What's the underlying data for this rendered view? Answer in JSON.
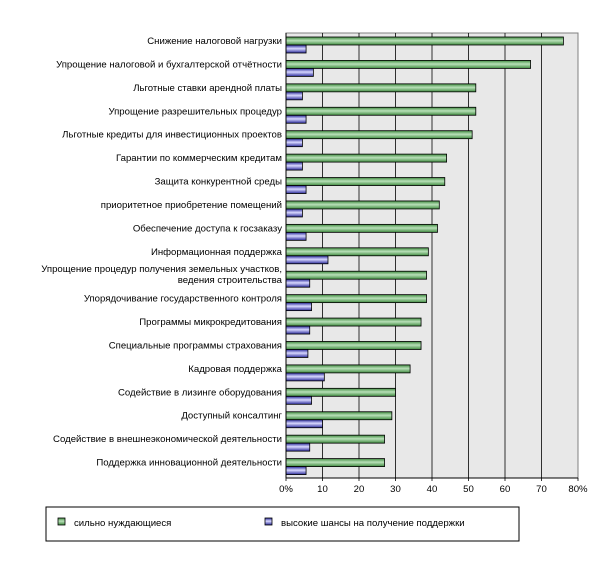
{
  "colors": {
    "plot_bg": "#e8e8e8",
    "series1_fill": "#3f8a3f",
    "series1_highlight": "#b8e0b8",
    "series2_fill": "#2b2b9a",
    "series2_highlight": "#d8d8ff",
    "gridline": "#000000"
  },
  "chart_data": {
    "type": "bar",
    "orientation": "horizontal",
    "categories": [
      [
        "Снижение налоговой нагрузки"
      ],
      [
        "Упрощение налоговой и бухгалтерской отчётности"
      ],
      [
        "Льготные ставки арендной платы"
      ],
      [
        "Упрощение разрешительных процедур"
      ],
      [
        "Льготные кредиты для инвестиционных проектов"
      ],
      [
        "Гарантии по коммерческим кредитам"
      ],
      [
        "Защита конкурентной среды"
      ],
      [
        "приоритетное приобретение помещений"
      ],
      [
        "Обеспечение доступа к госзаказу"
      ],
      [
        "Информационная поддержка"
      ],
      [
        "Упрощение процедур получения земельных участков,",
        "ведения строительства"
      ],
      [
        "Упорядочивание государственного контроля"
      ],
      [
        "Программы микрокредитования"
      ],
      [
        "Специальные программы страхования"
      ],
      [
        "Кадровая поддержка"
      ],
      [
        "Содействие в лизинге оборудования"
      ],
      [
        "Доступный консалтинг"
      ],
      [
        "Содействие в внешнеэкономической деятельности"
      ],
      [
        "Поддержка инновационной деятельности"
      ]
    ],
    "series": [
      {
        "name": "сильно нуждающиеся",
        "values": [
          76,
          67,
          52,
          52,
          51,
          44,
          43.5,
          42,
          41.5,
          39,
          38.5,
          38.5,
          37,
          37,
          34,
          30,
          29,
          27,
          27
        ]
      },
      {
        "name": "высокие шансы на получение поддержки",
        "values": [
          5.5,
          7.5,
          4.5,
          5.5,
          4.5,
          4.5,
          5.5,
          4.5,
          5.5,
          11.5,
          6.5,
          7,
          6.5,
          6,
          10.5,
          7,
          10,
          6.5,
          5.5
        ]
      }
    ],
    "xlim": [
      0,
      80
    ],
    "ticks": [
      "0%",
      "10",
      "20",
      "30",
      "40",
      "50",
      "60",
      "70",
      "80%"
    ],
    "grid": "vertical",
    "legend": "bottom"
  }
}
